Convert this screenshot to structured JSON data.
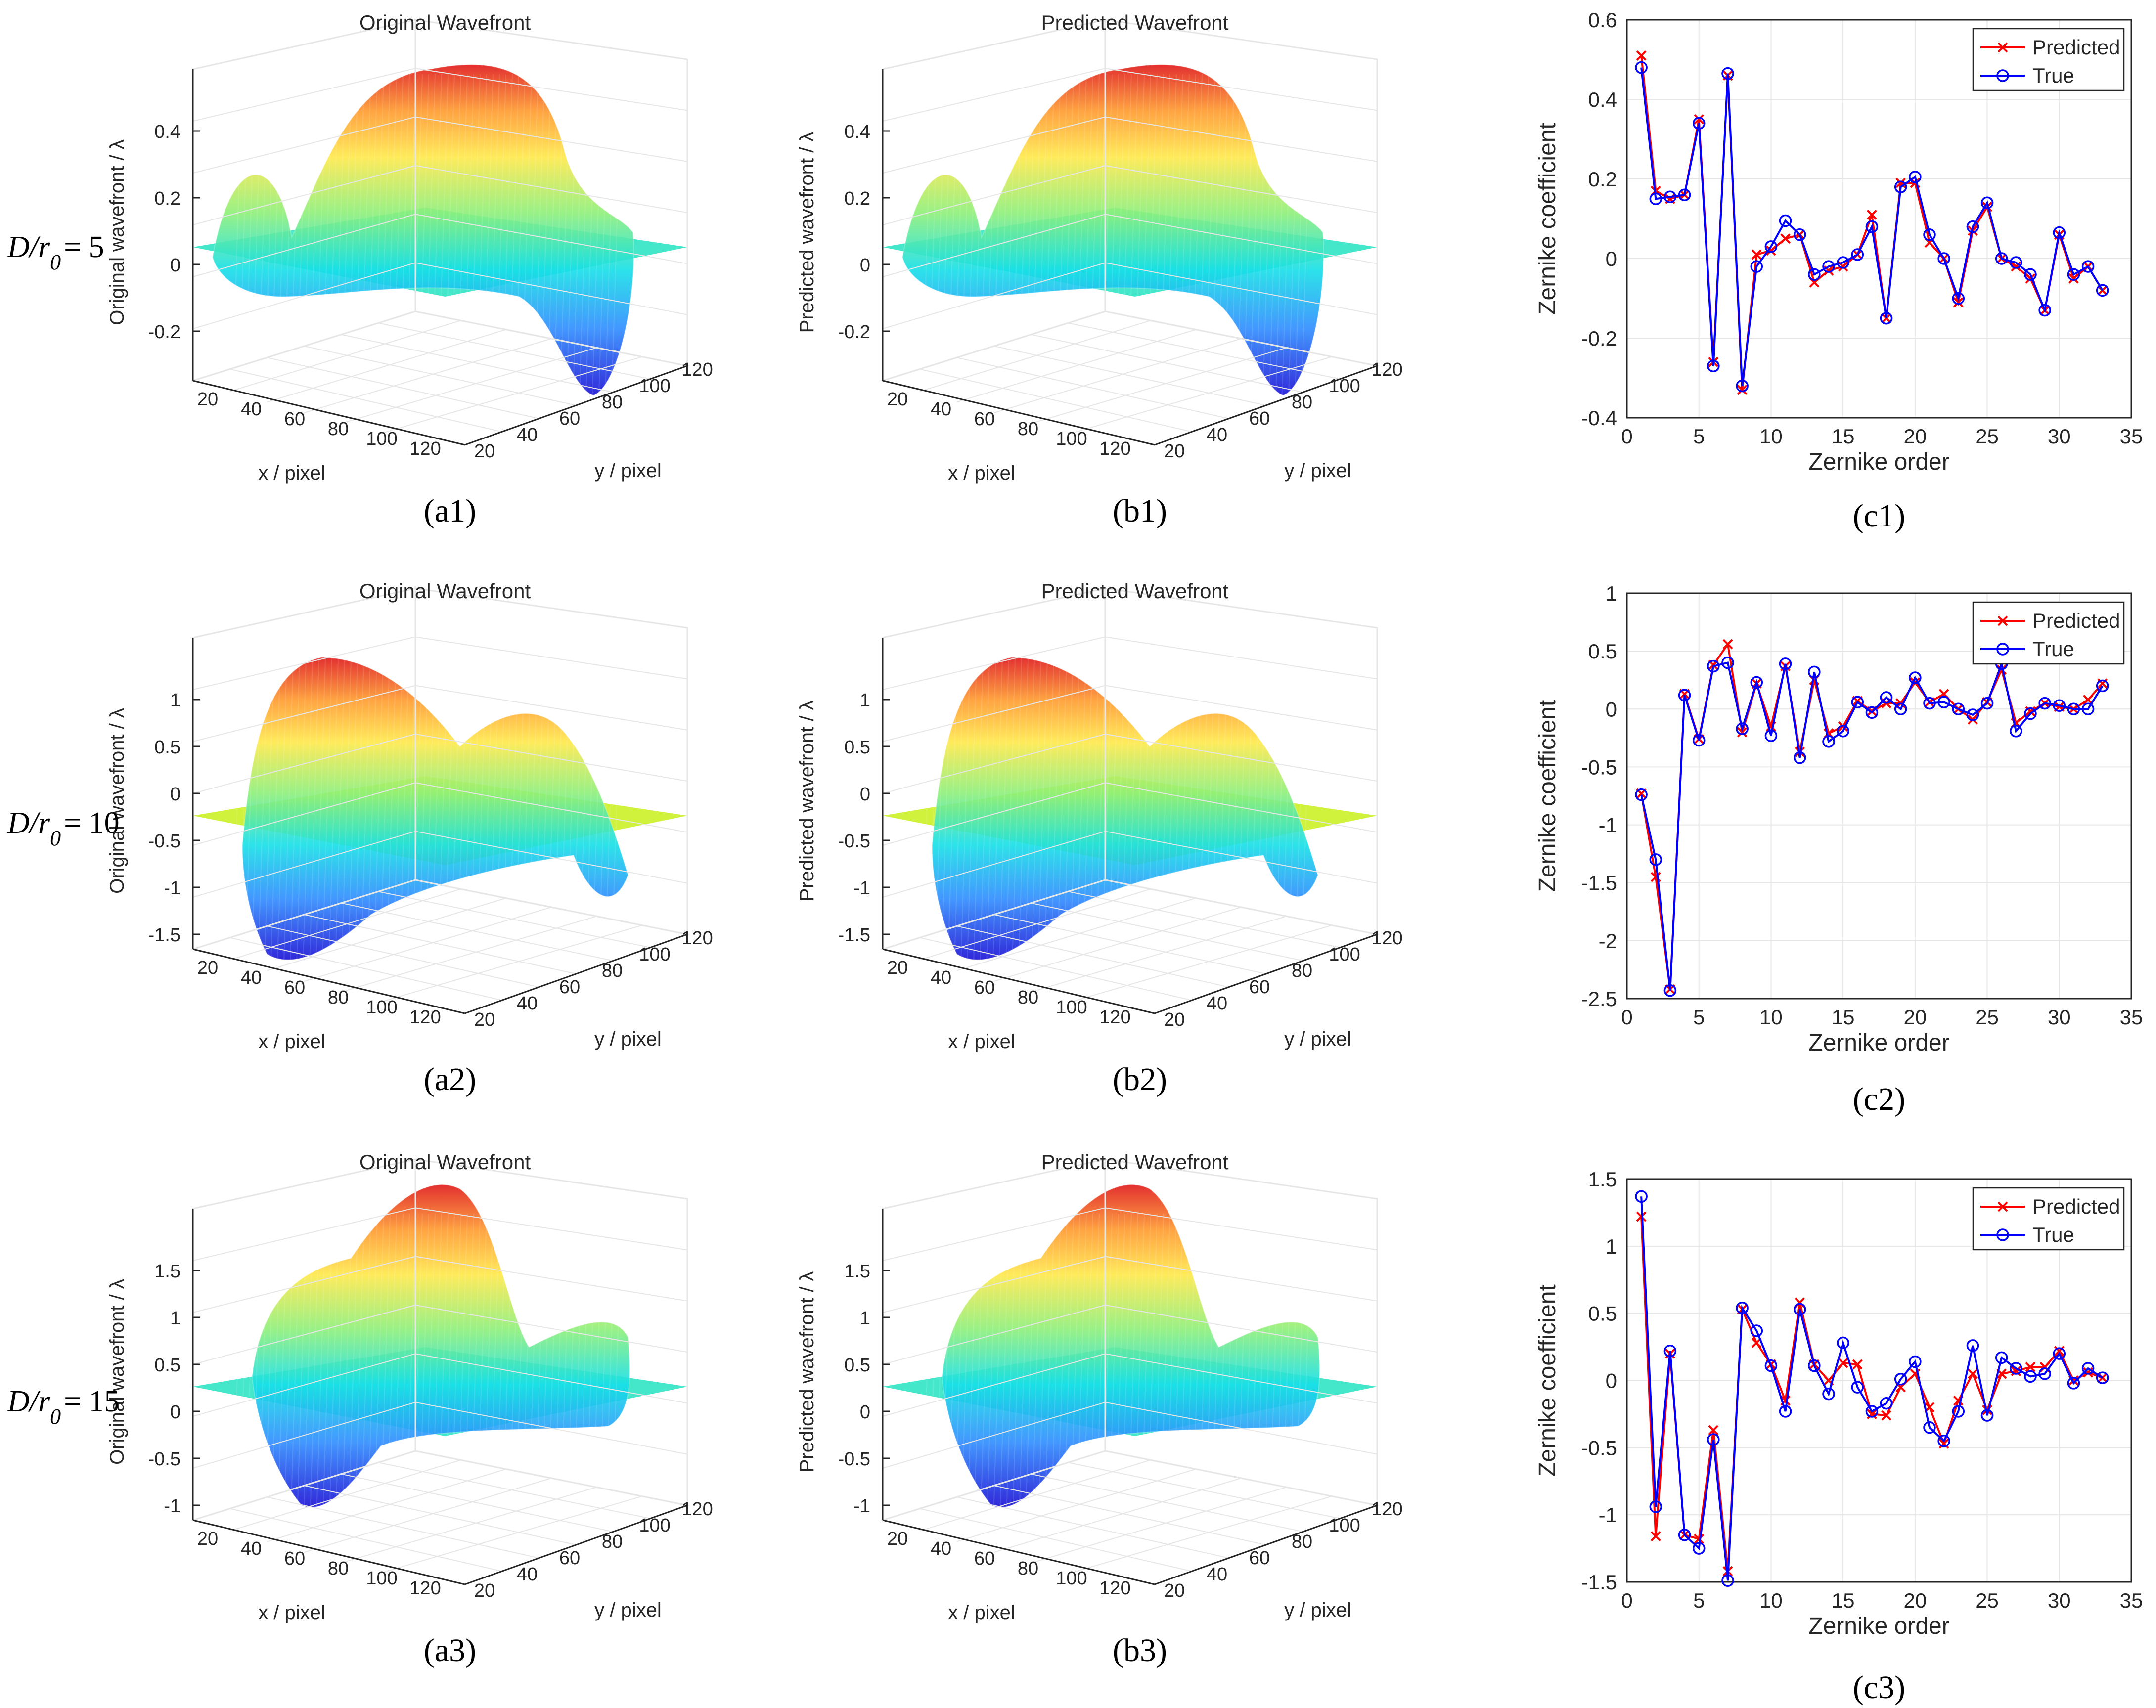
{
  "rows": [
    {
      "d_label": "D/r",
      "d_sub": "0",
      "d_value": "= 5"
    },
    {
      "d_label": "D/r",
      "d_sub": "0",
      "d_value": "= 10"
    },
    {
      "d_label": "D/r",
      "d_sub": "0",
      "d_value": "= 15"
    }
  ],
  "colors": {
    "predicted": "#ff0000",
    "true": "#0000ff",
    "grid": "#e6e6e6",
    "axis": "#262626"
  },
  "chart_data": [
    {
      "id": "a1",
      "type": "surface3d",
      "panel_label": "(a1)",
      "title": "Original Wavefront",
      "zlabel": "Original wavefront / λ",
      "xlabel": "x / pixel",
      "ylabel": "y / pixel",
      "zticks": [
        "0.4",
        "0.2",
        "0",
        "-0.2"
      ],
      "xticks": [
        "20",
        "40",
        "60",
        "80",
        "100",
        "120"
      ],
      "yticks": [
        "20",
        "40",
        "60",
        "80",
        "100",
        "120"
      ],
      "shape": "s1"
    },
    {
      "id": "b1",
      "type": "surface3d",
      "panel_label": "(b1)",
      "title": "Predicted Wavefront",
      "zlabel": "Predicted wavefront / λ",
      "xlabel": "x / pixel",
      "ylabel": "y / pixel",
      "zticks": [
        "0.4",
        "0.2",
        "0",
        "-0.2"
      ],
      "xticks": [
        "20",
        "40",
        "60",
        "80",
        "100",
        "120"
      ],
      "yticks": [
        "20",
        "40",
        "60",
        "80",
        "100",
        "120"
      ],
      "shape": "s1"
    },
    {
      "id": "c1",
      "type": "line",
      "panel_label": "(c1)",
      "xlabel": "Zernike order",
      "ylabel": "Zernike coefficient",
      "xlim": [
        0,
        35
      ],
      "ylim": [
        -0.4,
        0.6
      ],
      "xticks": [
        "0",
        "5",
        "10",
        "15",
        "20",
        "25",
        "30",
        "35"
      ],
      "yticks": [
        "-0.4",
        "-0.2",
        "0",
        "0.2",
        "0.4",
        "0.6"
      ],
      "x": [
        1,
        2,
        3,
        4,
        5,
        6,
        7,
        8,
        9,
        10,
        11,
        12,
        13,
        14,
        15,
        16,
        17,
        18,
        19,
        20,
        21,
        22,
        23,
        24,
        25,
        26,
        27,
        28,
        29,
        30,
        31,
        32,
        33
      ],
      "series": [
        {
          "name": "Predicted",
          "marker": "x",
          "values": [
            0.51,
            0.17,
            0.15,
            0.16,
            0.35,
            -0.26,
            0.46,
            -0.33,
            0.01,
            0.02,
            0.05,
            0.06,
            -0.06,
            -0.03,
            -0.02,
            0.01,
            0.11,
            -0.15,
            0.19,
            0.19,
            0.04,
            0.0,
            -0.11,
            0.07,
            0.13,
            0.0,
            -0.02,
            -0.05,
            -0.13,
            0.06,
            -0.05,
            -0.02,
            -0.08
          ]
        },
        {
          "name": "True",
          "marker": "o",
          "values": [
            0.48,
            0.15,
            0.155,
            0.16,
            0.34,
            -0.27,
            0.465,
            -0.32,
            -0.02,
            0.03,
            0.095,
            0.06,
            -0.04,
            -0.02,
            -0.01,
            0.01,
            0.08,
            -0.15,
            0.18,
            0.205,
            0.06,
            0.0,
            -0.1,
            0.08,
            0.14,
            0.0,
            -0.01,
            -0.04,
            -0.13,
            0.065,
            -0.04,
            -0.02,
            -0.08
          ]
        }
      ],
      "legend_position": "top-right"
    },
    {
      "id": "a2",
      "type": "surface3d",
      "panel_label": "(a2)",
      "title": "Original Wavefront",
      "zlabel": "Original wavefront / λ",
      "xlabel": "x / pixel",
      "ylabel": "y / pixel",
      "zticks": [
        "1",
        "0.5",
        "0",
        "-0.5",
        "-1",
        "-1.5"
      ],
      "xticks": [
        "20",
        "40",
        "60",
        "80",
        "100",
        "120"
      ],
      "yticks": [
        "20",
        "40",
        "60",
        "80",
        "100",
        "120"
      ],
      "shape": "s2"
    },
    {
      "id": "b2",
      "type": "surface3d",
      "panel_label": "(b2)",
      "title": "Predicted Wavefront",
      "zlabel": "Predicted wavefront / λ",
      "xlabel": "x / pixel",
      "ylabel": "y / pixel",
      "zticks": [
        "1",
        "0.5",
        "0",
        "-0.5",
        "-1",
        "-1.5"
      ],
      "xticks": [
        "20",
        "40",
        "60",
        "80",
        "100",
        "120"
      ],
      "yticks": [
        "20",
        "40",
        "60",
        "80",
        "100",
        "120"
      ],
      "shape": "s2"
    },
    {
      "id": "c2",
      "type": "line",
      "panel_label": "(c2)",
      "xlabel": "Zernike order",
      "ylabel": "Zernike coefficient",
      "xlim": [
        0,
        35
      ],
      "ylim": [
        -2.5,
        1
      ],
      "xticks": [
        "0",
        "5",
        "10",
        "15",
        "20",
        "25",
        "30",
        "35"
      ],
      "yticks": [
        "-2.5",
        "-2",
        "-1.5",
        "-1",
        "-0.5",
        "0",
        "0.5",
        "1"
      ],
      "x": [
        1,
        2,
        3,
        4,
        5,
        6,
        7,
        8,
        9,
        10,
        11,
        12,
        13,
        14,
        15,
        16,
        17,
        18,
        19,
        20,
        21,
        22,
        23,
        24,
        25,
        26,
        27,
        28,
        29,
        30,
        31,
        32,
        33
      ],
      "series": [
        {
          "name": "Predicted",
          "marker": "x",
          "values": [
            -0.73,
            -1.45,
            -2.42,
            0.13,
            -0.26,
            0.38,
            0.56,
            -0.2,
            0.22,
            -0.15,
            0.37,
            -0.37,
            0.25,
            -0.21,
            -0.15,
            0.07,
            -0.02,
            0.05,
            0.05,
            0.23,
            0.06,
            0.13,
            0.0,
            -0.09,
            0.06,
            0.34,
            -0.12,
            -0.02,
            0.05,
            0.02,
            0.0,
            0.08,
            0.22
          ]
        },
        {
          "name": "True",
          "marker": "o",
          "values": [
            -0.74,
            -1.3,
            -2.43,
            0.12,
            -0.27,
            0.37,
            0.4,
            -0.17,
            0.23,
            -0.23,
            0.39,
            -0.42,
            0.32,
            -0.28,
            -0.19,
            0.06,
            -0.03,
            0.1,
            0.0,
            0.27,
            0.05,
            0.06,
            0.0,
            -0.05,
            0.05,
            0.39,
            -0.19,
            -0.04,
            0.05,
            0.03,
            0.0,
            0.0,
            0.2
          ]
        }
      ],
      "legend_position": "top-right"
    },
    {
      "id": "a3",
      "type": "surface3d",
      "panel_label": "(a3)",
      "title": "Original Wavefront",
      "zlabel": "Original wavefront / λ",
      "xlabel": "x / pixel",
      "ylabel": "y / pixel",
      "zticks": [
        "1.5",
        "1",
        "0.5",
        "0",
        "-0.5",
        "-1"
      ],
      "xticks": [
        "20",
        "40",
        "60",
        "80",
        "100",
        "120"
      ],
      "yticks": [
        "20",
        "40",
        "60",
        "80",
        "100",
        "120"
      ],
      "shape": "s3"
    },
    {
      "id": "b3",
      "type": "surface3d",
      "panel_label": "(b3)",
      "title": "Predicted Wavefront",
      "zlabel": "Predicted wavefront / λ",
      "xlabel": "x / pixel",
      "ylabel": "y / pixel",
      "zticks": [
        "1.5",
        "1",
        "0.5",
        "0",
        "-0.5",
        "-1"
      ],
      "xticks": [
        "20",
        "40",
        "60",
        "80",
        "100",
        "120"
      ],
      "yticks": [
        "20",
        "40",
        "60",
        "80",
        "100",
        "120"
      ],
      "shape": "s3"
    },
    {
      "id": "c3",
      "type": "line",
      "panel_label": "(c3)",
      "xlabel": "Zernike order",
      "ylabel": "Zernike coefficient",
      "xlim": [
        0,
        35
      ],
      "ylim": [
        -1.5,
        1.5
      ],
      "xticks": [
        "0",
        "5",
        "10",
        "15",
        "20",
        "25",
        "30",
        "35"
      ],
      "yticks": [
        "-1.5",
        "-1",
        "-0.5",
        "0",
        "0.5",
        "1",
        "1.5"
      ],
      "x": [
        1,
        2,
        3,
        4,
        5,
        6,
        7,
        8,
        9,
        10,
        11,
        12,
        13,
        14,
        15,
        16,
        17,
        18,
        19,
        20,
        21,
        22,
        23,
        24,
        25,
        26,
        27,
        28,
        29,
        30,
        31,
        32,
        33
      ],
      "series": [
        {
          "name": "Predicted",
          "marker": "x",
          "values": [
            1.22,
            -1.16,
            0.2,
            -1.15,
            -1.18,
            -0.37,
            -1.42,
            0.53,
            0.28,
            0.12,
            -0.15,
            0.58,
            0.12,
            0.0,
            0.13,
            0.12,
            -0.25,
            -0.26,
            -0.05,
            0.05,
            -0.2,
            -0.47,
            -0.15,
            0.05,
            -0.22,
            0.05,
            0.07,
            0.1,
            0.1,
            0.22,
            0.0,
            0.06,
            0.02
          ]
        },
        {
          "name": "True",
          "marker": "o",
          "values": [
            1.37,
            -0.94,
            0.22,
            -1.15,
            -1.25,
            -0.44,
            -1.49,
            0.54,
            0.37,
            0.11,
            -0.23,
            0.53,
            0.11,
            -0.1,
            0.28,
            -0.05,
            -0.23,
            -0.17,
            0.01,
            0.14,
            -0.35,
            -0.45,
            -0.23,
            0.26,
            -0.26,
            0.17,
            0.09,
            0.03,
            0.05,
            0.2,
            -0.02,
            0.09,
            0.02
          ]
        }
      ],
      "legend_position": "top-right"
    }
  ]
}
